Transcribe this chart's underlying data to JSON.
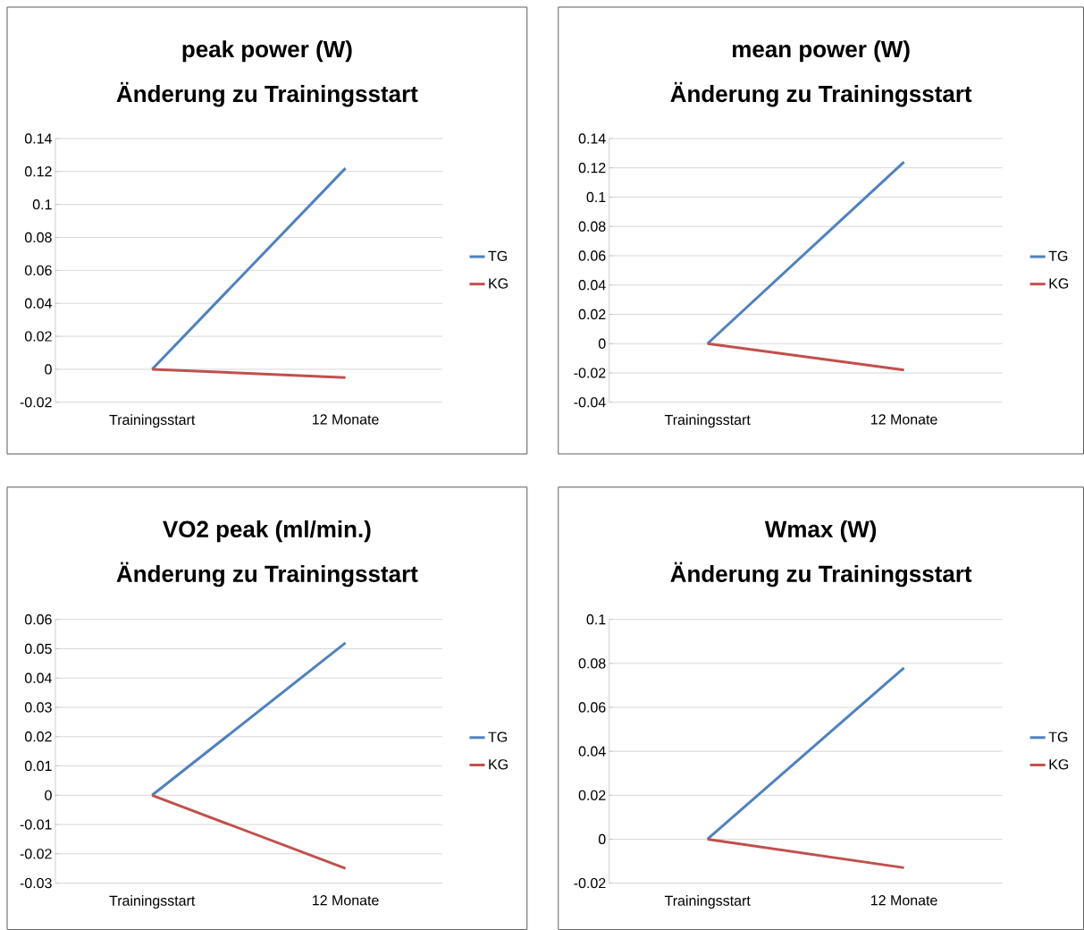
{
  "chart_data": [
    {
      "type": "line",
      "title": "peak power (W)",
      "subtitle": "Änderung zu Trainingsstart",
      "categories": [
        "Trainingsstart",
        "12 Monate"
      ],
      "ylim": [
        -0.02,
        0.14
      ],
      "yticks": [
        -0.02,
        0,
        0.02,
        0.04,
        0.06,
        0.08,
        0.1,
        0.12,
        0.14
      ],
      "grid": "y",
      "legend": "right",
      "series": [
        {
          "name": "TG",
          "color": "#4f81bd",
          "values": [
            0,
            0.122
          ]
        },
        {
          "name": "KG",
          "color": "#c0504d",
          "values": [
            0,
            -0.005
          ]
        }
      ]
    },
    {
      "type": "line",
      "title": "mean power (W)",
      "subtitle": "Änderung zu Trainingsstart",
      "categories": [
        "Trainingsstart",
        "12 Monate"
      ],
      "ylim": [
        -0.04,
        0.14
      ],
      "yticks": [
        -0.04,
        -0.02,
        0,
        0.02,
        0.04,
        0.06,
        0.08,
        0.1,
        0.12,
        0.14
      ],
      "grid": "y",
      "legend": "right",
      "series": [
        {
          "name": "TG",
          "color": "#4f81bd",
          "values": [
            0,
            0.124
          ]
        },
        {
          "name": "KG",
          "color": "#c0504d",
          "values": [
            0,
            -0.018
          ]
        }
      ]
    },
    {
      "type": "line",
      "title": "VO2 peak (ml/min.)",
      "subtitle": "Änderung zu Trainingsstart",
      "categories": [
        "Trainingsstart",
        "12 Monate"
      ],
      "ylim": [
        -0.03,
        0.06
      ],
      "yticks": [
        -0.03,
        -0.02,
        -0.01,
        0,
        0.01,
        0.02,
        0.03,
        0.04,
        0.05,
        0.06
      ],
      "grid": "y",
      "legend": "right",
      "series": [
        {
          "name": "TG",
          "color": "#4f81bd",
          "values": [
            0,
            0.052
          ]
        },
        {
          "name": "KG",
          "color": "#c0504d",
          "values": [
            0,
            -0.025
          ]
        }
      ]
    },
    {
      "type": "line",
      "title": "Wmax (W)",
      "subtitle": "Änderung zu Trainingsstart",
      "categories": [
        "Trainingsstart",
        "12 Monate"
      ],
      "ylim": [
        -0.02,
        0.1
      ],
      "yticks": [
        -0.02,
        0,
        0.02,
        0.04,
        0.06,
        0.08,
        0.1
      ],
      "grid": "y",
      "legend": "right",
      "series": [
        {
          "name": "TG",
          "color": "#4f81bd",
          "values": [
            0,
            0.078
          ]
        },
        {
          "name": "KG",
          "color": "#c0504d",
          "values": [
            0,
            -0.013
          ]
        }
      ]
    }
  ]
}
